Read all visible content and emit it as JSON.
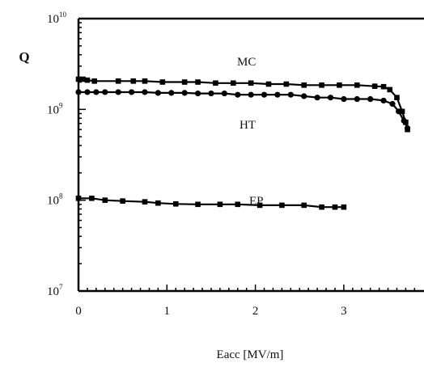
{
  "chart_data": {
    "type": "line",
    "title": "",
    "xlabel": "Eacc [MV/m]",
    "ylabel": "Q",
    "xlim": [
      0,
      4
    ],
    "ylim": [
      10000000,
      10000000000
    ],
    "y_scale": "log",
    "x_ticks": [
      "0",
      "1",
      "2",
      "3"
    ],
    "y_ticks": [
      {
        "base": "10",
        "exp": "10"
      },
      {
        "base": "10",
        "exp": "9"
      },
      {
        "base": "10",
        "exp": "8"
      },
      {
        "base": "10",
        "exp": "7"
      }
    ],
    "grid": false,
    "series": [
      {
        "name": "MC",
        "marker": "square",
        "x": [
          0.0,
          0.05,
          0.1,
          0.18,
          0.45,
          0.62,
          0.75,
          0.95,
          1.2,
          1.35,
          1.55,
          1.75,
          1.95,
          2.15,
          2.35,
          2.55,
          2.75,
          2.95,
          3.15,
          3.35,
          3.45,
          3.52,
          3.6,
          3.66,
          3.7,
          3.72
        ],
        "y": [
          2150000000.0,
          2150000000.0,
          2100000000.0,
          2050000000.0,
          2050000000.0,
          2050000000.0,
          2050000000.0,
          2000000000.0,
          2000000000.0,
          2000000000.0,
          1950000000.0,
          1950000000.0,
          1950000000.0,
          1900000000.0,
          1900000000.0,
          1850000000.0,
          1850000000.0,
          1850000000.0,
          1850000000.0,
          1800000000.0,
          1780000000.0,
          1650000000.0,
          1350000000.0,
          950000000.0,
          720000000.0,
          600000000.0
        ]
      },
      {
        "name": "HT",
        "marker": "circle",
        "x": [
          0.0,
          0.1,
          0.2,
          0.3,
          0.45,
          0.6,
          0.75,
          0.9,
          1.05,
          1.2,
          1.35,
          1.5,
          1.65,
          1.8,
          1.95,
          2.1,
          2.25,
          2.4,
          2.55,
          2.7,
          2.85,
          3.0,
          3.15,
          3.3,
          3.45,
          3.55,
          3.62,
          3.68,
          3.72
        ],
        "y": [
          1550000000.0,
          1550000000.0,
          1550000000.0,
          1550000000.0,
          1550000000.0,
          1550000000.0,
          1550000000.0,
          1520000000.0,
          1520000000.0,
          1520000000.0,
          1500000000.0,
          1500000000.0,
          1500000000.0,
          1450000000.0,
          1450000000.0,
          1450000000.0,
          1450000000.0,
          1450000000.0,
          1400000000.0,
          1350000000.0,
          1350000000.0,
          1300000000.0,
          1300000000.0,
          1300000000.0,
          1250000000.0,
          1150000000.0,
          950000000.0,
          750000000.0,
          620000000.0
        ]
      },
      {
        "name": "EP",
        "marker": "square",
        "x": [
          0.0,
          0.15,
          0.3,
          0.5,
          0.75,
          0.9,
          1.1,
          1.35,
          1.6,
          1.8,
          2.05,
          2.3,
          2.55,
          2.75,
          2.9,
          3.0
        ],
        "y": [
          105000000.0,
          105000000.0,
          100000000.0,
          98000000.0,
          96000000.0,
          93000000.0,
          91000000.0,
          90000000.0,
          90000000.0,
          90000000.0,
          88000000.0,
          88000000.0,
          88000000.0,
          84000000.0,
          84000000.0,
          84000000.0
        ]
      }
    ]
  }
}
